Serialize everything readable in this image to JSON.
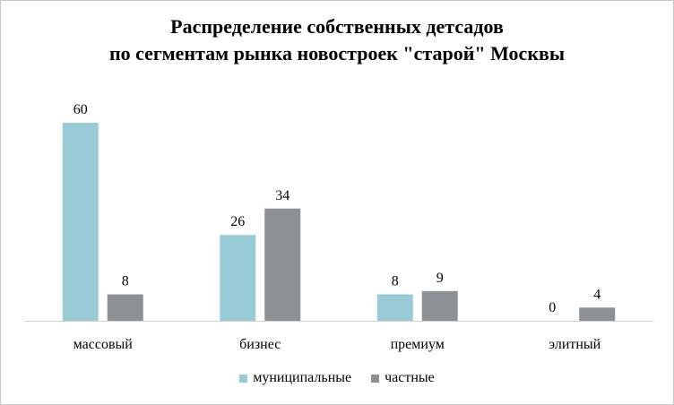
{
  "chart_data": {
    "type": "bar",
    "title_line1": "Распределение собственных детсадов",
    "title_line2": "по сегментам рынка новостроек \"старой\" Москвы",
    "categories": [
      "массовый",
      "бизнес",
      "премиум",
      "элитный"
    ],
    "series": [
      {
        "name": "муниципальные",
        "color": "#99cbd6",
        "values": [
          60,
          26,
          8,
          0
        ]
      },
      {
        "name": "частные",
        "color": "#8c9195",
        "values": [
          8,
          34,
          9,
          4
        ]
      }
    ],
    "ylim": [
      0,
      60
    ],
    "grid": false,
    "legend_position": "bottom"
  }
}
